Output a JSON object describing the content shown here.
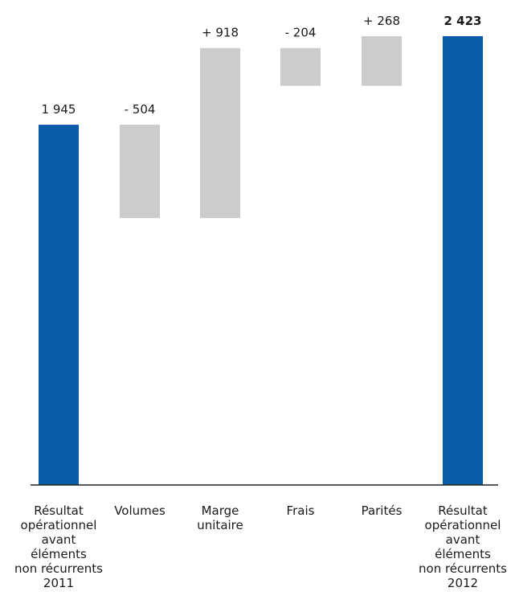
{
  "chart_data": {
    "type": "waterfall",
    "title": "",
    "xlabel": "",
    "ylabel": "",
    "ylim": [
      0,
      2500
    ],
    "grid": false,
    "legend": "none",
    "colors": {
      "total": "#0a5ca8",
      "delta": "#cccccc",
      "axis": "#222222"
    },
    "bars": [
      {
        "kind": "total",
        "label_lines": [
          "Résultat",
          "opérationnel",
          "avant",
          "éléments",
          "non récurrents",
          "2011"
        ],
        "value": 1945,
        "value_label": "1 945",
        "bold": false
      },
      {
        "kind": "delta",
        "label_lines": [
          "Volumes"
        ],
        "value": -504,
        "value_label": "- 504",
        "bold": false
      },
      {
        "kind": "delta",
        "label_lines": [
          "Marge",
          "unitaire"
        ],
        "value": 918,
        "value_label": "+ 918",
        "bold": false
      },
      {
        "kind": "delta",
        "label_lines": [
          "Frais"
        ],
        "value": -204,
        "value_label": "- 204",
        "bold": false
      },
      {
        "kind": "delta",
        "label_lines": [
          "Parités"
        ],
        "value": 268,
        "value_label": "+ 268",
        "bold": false
      },
      {
        "kind": "total",
        "label_lines": [
          "Résultat",
          "opérationnel",
          "avant",
          "éléments",
          "non récurrents",
          "2012"
        ],
        "value": 2423,
        "value_label": "2 423",
        "bold": true
      }
    ]
  }
}
